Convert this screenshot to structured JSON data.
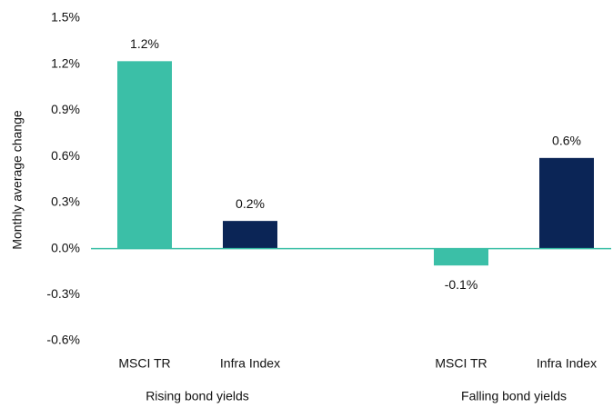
{
  "chart_data": {
    "type": "bar",
    "y_label": "Monthly average change",
    "categories": [
      "Rising bond yields",
      "Falling bond yields"
    ],
    "series": [
      {
        "name": "MSCI TR",
        "color": "#3bbfa7",
        "values": [
          1.22,
          -0.11
        ],
        "value_labels": [
          "1.2%",
          "-0.1%"
        ]
      },
      {
        "name": "Infra Index",
        "color": "#0b2556",
        "values": [
          0.18,
          0.59
        ],
        "value_labels": [
          "0.2%",
          "0.6%"
        ]
      }
    ],
    "ylim": [
      -0.6,
      1.5
    ],
    "yticks": [
      {
        "value": -0.6,
        "label": "-0.6%"
      },
      {
        "value": -0.3,
        "label": "-0.3%"
      },
      {
        "value": 0,
        "label": "0.0%"
      },
      {
        "value": 0.3,
        "label": "0.3%"
      },
      {
        "value": 0.6,
        "label": "0.6%"
      },
      {
        "value": 0.9,
        "label": "0.9%"
      },
      {
        "value": 1.2,
        "label": "1.2%"
      },
      {
        "value": 1.5,
        "label": "1.5%"
      }
    ],
    "grid": false
  }
}
